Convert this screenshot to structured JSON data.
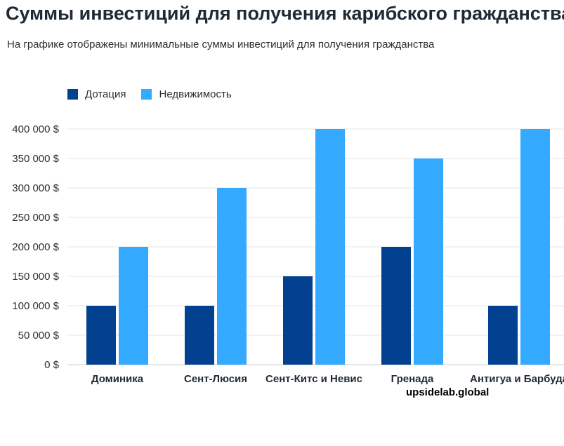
{
  "header": {
    "title": "Суммы инвестиций для получения карибского гражданства",
    "subtitle": "На графике отображены минимальные суммы инвестиций для получения гражданства"
  },
  "watermark": "upsidelab.global",
  "colors": {
    "series_dark": "#024190",
    "series_light": "#33aaff",
    "grid": "#e6e6e6",
    "axis_text": "#2b2f33"
  },
  "chart_data": {
    "type": "bar",
    "title": "Суммы инвестиций для получения карибского гражданства",
    "xlabel": "",
    "ylabel": "",
    "categories": [
      "Доминика",
      "Сент-Люсия",
      "Сент-Китс и Невис",
      "Гренада",
      "Антигуа и Барбуда"
    ],
    "series": [
      {
        "name": "Дотация",
        "values": [
          100000,
          100000,
          150000,
          200000,
          100000
        ]
      },
      {
        "name": "Недвижимость",
        "values": [
          200000,
          300000,
          400000,
          350000,
          400000
        ]
      }
    ],
    "ylim": [
      0,
      400000
    ],
    "yticks": [
      0,
      50000,
      100000,
      150000,
      200000,
      250000,
      300000,
      350000,
      400000
    ],
    "ytick_labels": [
      "0 $",
      "50 000 $",
      "100 000 $",
      "150 000 $",
      "200 000 $",
      "250 000 $",
      "300 000 $",
      "350 000 $",
      "400 000 $"
    ],
    "grid": true,
    "legend_position": "top-left"
  }
}
